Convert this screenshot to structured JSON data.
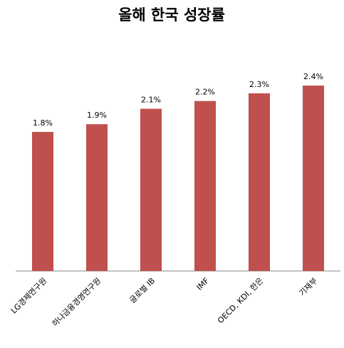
{
  "chart_data": {
    "type": "bar",
    "title": "올해 한국 성장률",
    "categories": [
      "LG경제연구원",
      "하나금융경영연구원",
      "글로벌 IB",
      "IMF",
      "OECD, KDI, 한은",
      "기재부"
    ],
    "values": [
      1.8,
      1.9,
      2.1,
      2.2,
      2.3,
      2.4
    ],
    "value_labels": [
      "1.8%",
      "1.9%",
      "2.1%",
      "2.2%",
      "2.3%",
      "2.4%"
    ],
    "color": "#c0504d",
    "ylim": [
      0,
      3
    ]
  }
}
